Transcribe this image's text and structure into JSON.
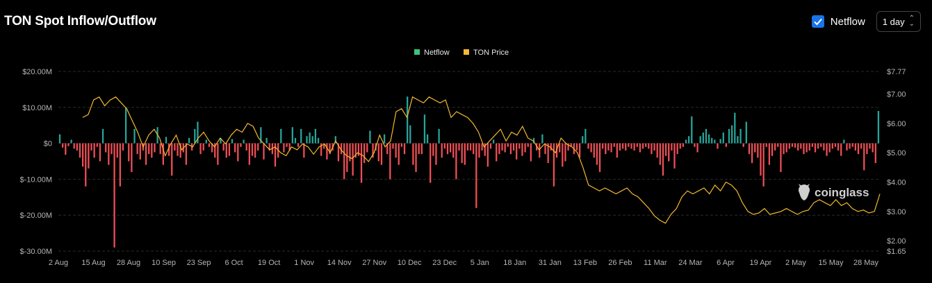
{
  "title": "TON Spot Inflow/Outflow",
  "controls": {
    "netflow_checked": true,
    "netflow_label": "Netflow",
    "interval": "1 day"
  },
  "watermark": "coinglass",
  "colors": {
    "positive": "#26a69a",
    "negative": "#ef4f55",
    "price": "#f3ba2f",
    "legend_netflow": "#3cc47c",
    "legend_price": "#f3ba2f"
  },
  "chart_data": {
    "type": "bar",
    "legend": [
      "Netflow",
      "TON Price"
    ],
    "x_ticks": [
      "2 Aug",
      "15 Aug",
      "28 Aug",
      "10 Sep",
      "23 Sep",
      "6 Oct",
      "19 Oct",
      "1 Nov",
      "14 Nov",
      "27 Nov",
      "10 Dec",
      "23 Dec",
      "5 Jan",
      "18 Jan",
      "31 Jan",
      "13 Feb",
      "26 Feb",
      "11 Mar",
      "24 Mar",
      "6 Apr",
      "19 Apr",
      "2 May",
      "15 May",
      "28 May"
    ],
    "y_left_ticks": [
      "$20.00M",
      "$10.00M",
      "$0",
      "$-10.00M",
      "$-20.00M",
      "$-30.00M"
    ],
    "y_left_range": [
      -30,
      20
    ],
    "y_right_ticks": [
      "$7.77",
      "$7.00",
      "$6.00",
      "$5.00",
      "$4.00",
      "$3.00",
      "$2.00",
      "$1.65"
    ],
    "y_right_range": [
      1.65,
      7.77
    ],
    "series": [
      {
        "name": "Netflow",
        "unit": "M USD",
        "values": [
          2.5,
          -1.2,
          -3.2,
          -0.8,
          1.0,
          -1.5,
          -2.0,
          -4.0,
          -6.5,
          -12.0,
          -7.0,
          -2.0,
          -4.0,
          -1.0,
          -5.0,
          4.0,
          -2.5,
          -6.0,
          -3.0,
          -29.0,
          -4.0,
          -12.0,
          -2.0,
          10.0,
          -5.0,
          -8.0,
          4.0,
          -3.0,
          -4.5,
          -2.0,
          -6.0,
          -3.0,
          -4.0,
          -2.5,
          4.5,
          -3.0,
          -6.0,
          1.8,
          -3.5,
          -9.0,
          -2.0,
          -3.5,
          -4.0,
          -2.5,
          -6.0,
          1.5,
          -2.0,
          4.0,
          6.0,
          -3.0,
          -2.0,
          1.0,
          -1.0,
          -2.5,
          -4.0,
          -6.0,
          1.5,
          -2.0,
          -4.0,
          -3.5,
          1.2,
          -2.5,
          -5.0,
          -1.0,
          1.0,
          -2.0,
          -6.0,
          -3.5,
          -4.0,
          -2.0,
          4.5,
          -4.5,
          1.5,
          -2.0,
          -3.0,
          -6.5,
          -4.0,
          4.0,
          -2.5,
          -1.0,
          -2.0,
          4.5,
          1.5,
          -1.0,
          4.0,
          -4.0,
          2.0,
          3.0,
          2.0,
          4.0,
          1.5,
          -3.5,
          -1.5,
          -4.5,
          -3.0,
          -2.0,
          2.0,
          -5.0,
          -3.0,
          -10.0,
          -8.0,
          -5.0,
          -9.0,
          -4.0,
          -3.5,
          -11.0,
          -5.5,
          -2.5,
          3.5,
          -4.0,
          -2.0,
          -5.0,
          -6.0,
          2.5,
          -3.0,
          -10.0,
          -1.5,
          -4.0,
          -6.0,
          -1.0,
          -3.0,
          13.0,
          5.0,
          -6.0,
          -8.0,
          -3.0,
          -3.0,
          8.0,
          2.5,
          -11.0,
          -3.5,
          -6.0,
          4.0,
          -4.0,
          -1.5,
          -3.0,
          -2.5,
          -4.0,
          -10.0,
          -2.0,
          -5.5,
          -6.0,
          -2.0,
          -2.0,
          -3.0,
          -18.0,
          -4.0,
          -2.0,
          -3.5,
          -6.5,
          -1.5,
          1.0,
          -5.0,
          -3.0,
          -2.0,
          -2.5,
          -1.0,
          -3.0,
          -2.0,
          -4.5,
          -1.5,
          -3.5,
          -2.5,
          -1.0,
          -5.0,
          1.5,
          -2.0,
          -4.0,
          2.5,
          -3.0,
          -5.5,
          -2.0,
          -12.0,
          -4.0,
          -2.5,
          -6.5,
          -5.0,
          -2.0,
          -1.0,
          -3.0,
          -2.0,
          -4.0,
          2.0,
          4.0,
          -1.5,
          -2.5,
          -4.0,
          -6.0,
          -8.0,
          -1.5,
          -3.0,
          -2.0,
          -2.5,
          -1.0,
          -4.0,
          -2.0,
          -1.5,
          -2.0,
          -1.0,
          -1.5,
          -2.0,
          -1.0,
          -2.5,
          -1.5,
          -1.0,
          -1.5,
          -3.0,
          -2.0,
          -4.0,
          -6.0,
          -9.0,
          -3.5,
          -5.0,
          -2.0,
          -7.0,
          -3.0,
          -1.5,
          -1.0,
          1.0,
          2.0,
          7.5,
          -1.0,
          -2.5,
          2.0,
          3.0,
          4.0,
          2.5,
          1.5,
          1.0,
          -1.5,
          1.2,
          3.0,
          -1.0,
          4.0,
          5.0,
          8.5,
          2.0,
          4.0,
          -1.0,
          6.0,
          -3.0,
          -5.5,
          -2.5,
          -4.0,
          -9.0,
          -12.0,
          -1.0,
          -6.0,
          -3.5,
          -2.0,
          -1.0,
          -8.0,
          -3.0,
          -2.5,
          -1.5,
          -1.0,
          -1.2,
          -2.0,
          -1.5,
          -3.0,
          -2.5,
          -2.0,
          -1.0,
          -2.5,
          -1.5,
          -1.0,
          -2.0,
          -3.5,
          -2.5,
          -1.5,
          -1.0,
          -2.0,
          -3.5,
          1.0,
          -2.0,
          -1.5,
          -1.0,
          -2.0,
          -3.0,
          -1.5,
          -7.5,
          -3.0,
          -1.5,
          -2.5,
          -5.5,
          9.0
        ]
      },
      {
        "name": "TON Price",
        "unit": "USD",
        "values": [
          6.2,
          6.3,
          6.8,
          6.9,
          6.6,
          6.8,
          6.9,
          6.7,
          6.5,
          6.1,
          5.7,
          5.2,
          5.6,
          5.8,
          5.5,
          4.9,
          5.3,
          5.6,
          5.1,
          5.3,
          5.2,
          5.5,
          5.7,
          5.4,
          5.2,
          5.5,
          5.3,
          5.6,
          5.8,
          5.7,
          6.0,
          5.9,
          5.5,
          5.3,
          5.1,
          5.2,
          5.0,
          4.9,
          5.2,
          5.1,
          5.3,
          5.2,
          4.95,
          5.2,
          5.3,
          5.0,
          5.4,
          5.1,
          4.9,
          4.8,
          5.0,
          4.9,
          4.7,
          5.0,
          5.6,
          5.2,
          5.4,
          6.4,
          6.5,
          6.2,
          6.9,
          6.8,
          6.7,
          6.9,
          6.8,
          6.7,
          6.8,
          6.2,
          6.4,
          6.3,
          6.2,
          6.0,
          5.7,
          5.2,
          5.4,
          5.6,
          5.8,
          5.4,
          5.7,
          5.6,
          5.9,
          5.5,
          5.4,
          5.1,
          5.3,
          5.2,
          5.0,
          5.5,
          5.3,
          5.2,
          5.0,
          4.5,
          3.9,
          3.8,
          3.7,
          3.8,
          3.7,
          3.6,
          3.7,
          3.8,
          3.6,
          3.5,
          3.3,
          3.1,
          2.85,
          2.7,
          2.6,
          2.9,
          3.1,
          3.5,
          3.7,
          3.6,
          3.7,
          3.8,
          3.6,
          3.9,
          3.7,
          4.0,
          3.9,
          3.7,
          3.3,
          3.0,
          2.9,
          2.95,
          3.1,
          2.9,
          2.95,
          3.0,
          3.1,
          3.0,
          2.9,
          3.0,
          3.05,
          3.3,
          3.4,
          3.3,
          3.2,
          3.4,
          3.2,
          3.3,
          3.1,
          3.0,
          3.05,
          2.95,
          3.0,
          3.6
        ]
      }
    ]
  }
}
